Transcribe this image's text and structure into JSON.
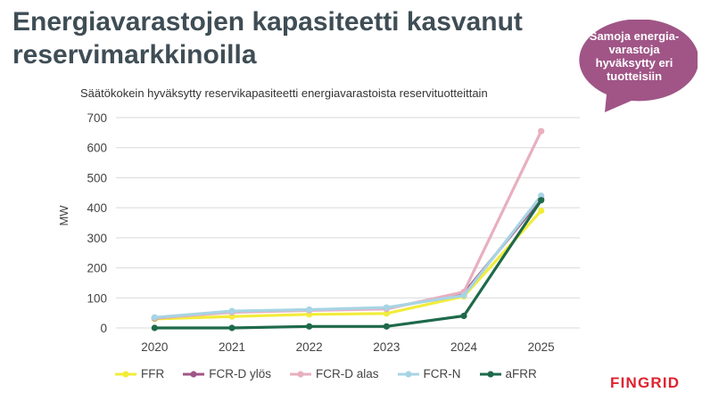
{
  "slide": {
    "title": "Energiavarastojen kapasiteetti kasvanut reservimarkkinoilla",
    "callout": "Samoja energia-varastoja hyväksytty eri tuotteisiin",
    "logo": "FINGRID"
  },
  "colors": {
    "title": "#3f4d55",
    "callout_fill": "#a05586",
    "grid": "#d9d9d9",
    "logo": "#e0222f"
  },
  "chart_data": {
    "type": "line",
    "title": "Säätökokein hyväksytty reservikapasiteetti energiavarastoista reservituotteittain",
    "xlabel": "",
    "ylabel": "MW",
    "categories": [
      "2020",
      "2021",
      "2022",
      "2023",
      "2024",
      "2025"
    ],
    "ylim": [
      0,
      700
    ],
    "yticks": [
      0,
      100,
      200,
      300,
      400,
      500,
      600,
      700
    ],
    "grid": true,
    "legend_position": "bottom",
    "series": [
      {
        "name": "FFR",
        "color": "#f2ec3a",
        "values": [
          30,
          38,
          45,
          48,
          105,
          390
        ]
      },
      {
        "name": "FCR-D ylös",
        "color": "#a05586",
        "values": [
          32,
          55,
          60,
          65,
          115,
          430
        ]
      },
      {
        "name": "FCR-D alas",
        "color": "#e8afbf",
        "values": [
          33,
          52,
          58,
          63,
          120,
          655
        ]
      },
      {
        "name": "FCR-N",
        "color": "#a7d4e4",
        "values": [
          35,
          56,
          61,
          68,
          108,
          440
        ]
      },
      {
        "name": "aFRR",
        "color": "#1e6a4b",
        "values": [
          0,
          0,
          5,
          5,
          40,
          425
        ]
      }
    ]
  }
}
